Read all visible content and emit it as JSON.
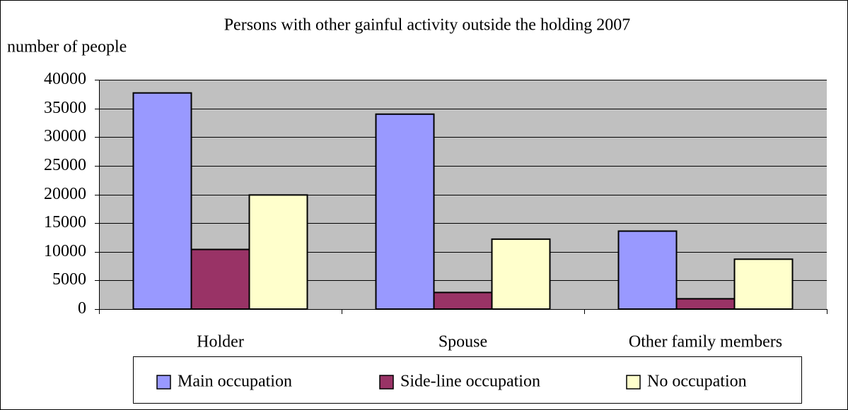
{
  "chart_data": {
    "type": "bar",
    "title": "Persons with other gainful activity outside the holding 2007",
    "y_label": "number of people",
    "categories": [
      "Holder",
      "Spouse",
      "Other family members"
    ],
    "series": [
      {
        "name": "Main occupation",
        "color": "#9999ff",
        "values": [
          37700,
          34000,
          13600
        ]
      },
      {
        "name": "Side-line occupation",
        "color": "#993366",
        "values": [
          10400,
          2900,
          1800
        ]
      },
      {
        "name": "No occupation",
        "color": "#ffffcc",
        "values": [
          19900,
          12200,
          8700
        ]
      }
    ],
    "ylim": [
      0,
      40000
    ],
    "yticks": [
      0,
      5000,
      10000,
      15000,
      20000,
      25000,
      30000,
      35000,
      40000
    ],
    "grid": true
  }
}
